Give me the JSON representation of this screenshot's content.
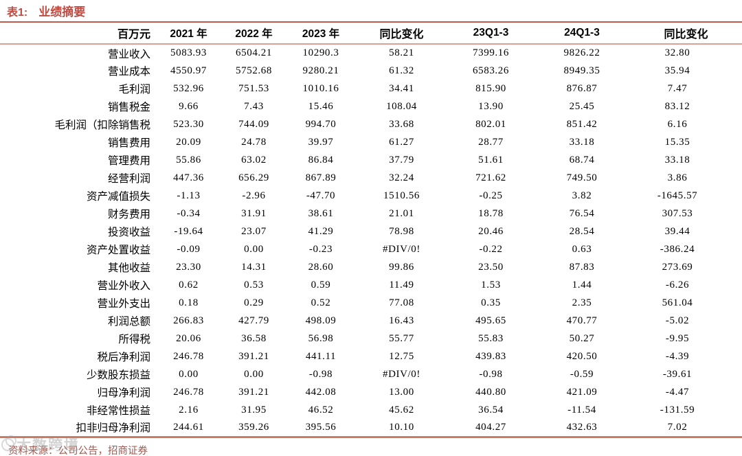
{
  "table": {
    "title_prefix": "表1:",
    "title": "业绩摘要",
    "columns": [
      "百万元",
      "2021 年",
      "2022 年",
      "2023 年",
      "同比变化",
      "23Q1-3",
      "24Q1-3",
      "同比变化"
    ],
    "rows": [
      {
        "label": "营业收入",
        "values": [
          "5083.93",
          "6504.21",
          "10290.3",
          "58.21",
          "7399.16",
          "9826.22",
          "32.80"
        ]
      },
      {
        "label": "营业成本",
        "values": [
          "4550.97",
          "5752.68",
          "9280.21",
          "61.32",
          "6583.26",
          "8949.35",
          "35.94"
        ]
      },
      {
        "label": "毛利润",
        "values": [
          "532.96",
          "751.53",
          "1010.16",
          "34.41",
          "815.90",
          "876.87",
          "7.47"
        ]
      },
      {
        "label": "销售税金",
        "values": [
          "9.66",
          "7.43",
          "15.46",
          "108.04",
          "13.90",
          "25.45",
          "83.12"
        ]
      },
      {
        "label": "毛利润（扣除销售税",
        "values": [
          "523.30",
          "744.09",
          "994.70",
          "33.68",
          "802.01",
          "851.42",
          "6.16"
        ]
      },
      {
        "label": "销售费用",
        "values": [
          "20.09",
          "24.78",
          "39.97",
          "61.27",
          "28.77",
          "33.18",
          "15.35"
        ]
      },
      {
        "label": "管理费用",
        "values": [
          "55.86",
          "63.02",
          "86.84",
          "37.79",
          "51.61",
          "68.74",
          "33.18"
        ]
      },
      {
        "label": "经营利润",
        "values": [
          "447.36",
          "656.29",
          "867.89",
          "32.24",
          "721.62",
          "749.50",
          "3.86"
        ]
      },
      {
        "label": "资产减值损失",
        "values": [
          "-1.13",
          "-2.96",
          "-47.70",
          "1510.56",
          "-0.25",
          "3.82",
          "-1645.57"
        ]
      },
      {
        "label": "财务费用",
        "values": [
          "-0.34",
          "31.91",
          "38.61",
          "21.01",
          "18.78",
          "76.54",
          "307.53"
        ]
      },
      {
        "label": "投资收益",
        "values": [
          "-19.64",
          "23.07",
          "41.29",
          "78.98",
          "20.46",
          "28.54",
          "39.44"
        ]
      },
      {
        "label": "资产处置收益",
        "values": [
          "-0.09",
          "0.00",
          "-0.23",
          "#DIV/0!",
          "-0.22",
          "0.63",
          "-386.24"
        ]
      },
      {
        "label": "其他收益",
        "values": [
          "23.30",
          "14.31",
          "28.60",
          "99.86",
          "23.50",
          "87.83",
          "273.69"
        ]
      },
      {
        "label": "营业外收入",
        "values": [
          "0.62",
          "0.53",
          "0.59",
          "11.49",
          "1.53",
          "1.44",
          "-6.26"
        ]
      },
      {
        "label": "营业外支出",
        "values": [
          "0.18",
          "0.29",
          "0.52",
          "77.08",
          "0.35",
          "2.35",
          "561.04"
        ]
      },
      {
        "label": "利润总额",
        "values": [
          "266.83",
          "427.79",
          "498.09",
          "16.43",
          "495.65",
          "470.77",
          "-5.02"
        ]
      },
      {
        "label": "所得税",
        "values": [
          "20.06",
          "36.58",
          "56.98",
          "55.77",
          "55.83",
          "50.27",
          "-9.95"
        ]
      },
      {
        "label": "税后净利润",
        "values": [
          "246.78",
          "391.21",
          "441.11",
          "12.75",
          "439.83",
          "420.50",
          "-4.39"
        ]
      },
      {
        "label": "少数股东损益",
        "values": [
          "0.00",
          "0.00",
          "-0.98",
          "#DIV/0!",
          "-0.98",
          "-0.59",
          "-39.61"
        ]
      },
      {
        "label": "归母净利润",
        "values": [
          "246.78",
          "391.21",
          "442.08",
          "13.00",
          "440.80",
          "421.09",
          "-4.47"
        ]
      },
      {
        "label": "非经常性损益",
        "values": [
          "2.16",
          "31.95",
          "46.52",
          "45.62",
          "36.54",
          "-11.54",
          "-131.59"
        ]
      },
      {
        "label": "扣非归母净利润",
        "values": [
          "244.61",
          "359.26",
          "395.56",
          "10.10",
          "404.27",
          "432.63",
          "7.02"
        ]
      }
    ]
  },
  "footer": {
    "source": "资料来源：公司公告，招商证券"
  },
  "watermark": {
    "text": "大数跨境"
  },
  "colors": {
    "accent": "#BE4B42",
    "rule_light": "#DDA091",
    "rule_bottom": "#CC7A64",
    "footer_text": "#A25A50",
    "body_text": "#000000"
  }
}
